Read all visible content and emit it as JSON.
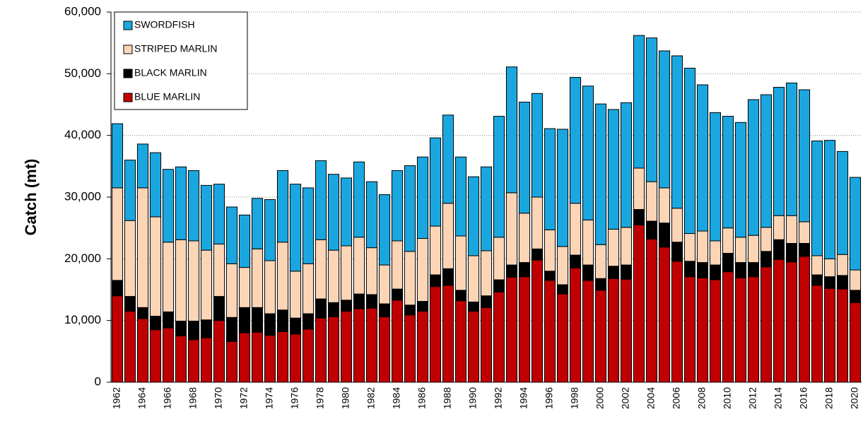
{
  "chart_data": {
    "type": "stacked-bar",
    "y_label": "Catch (mt)",
    "categories": [
      "1962",
      null,
      "1964",
      null,
      "1966",
      null,
      "1968",
      null,
      "1970",
      null,
      "1972",
      null,
      "1974",
      null,
      "1976",
      null,
      "1978",
      null,
      "1980",
      null,
      "1982",
      null,
      "1984",
      null,
      "1986",
      null,
      "1988",
      null,
      "1990",
      null,
      "1992",
      null,
      "1994",
      null,
      "1996",
      null,
      "1998",
      null,
      "2000",
      null,
      "2002",
      null,
      "2004",
      null,
      "2006",
      null,
      "2008",
      null,
      "2010",
      null,
      "2012",
      null,
      "2014",
      null,
      "2016",
      null,
      "2018",
      null,
      "2020"
    ],
    "series": [
      {
        "name": "BLUE MARLIN",
        "color": "#c00000",
        "values": [
          14000,
          11500,
          10300,
          8500,
          8800,
          7500,
          6900,
          7200,
          10000,
          6600,
          8000,
          8100,
          7600,
          8200,
          7800,
          8600,
          10400,
          10600,
          11500,
          11900,
          12000,
          10600,
          13300,
          10900,
          11500,
          15500,
          15700,
          13200,
          11500,
          12100,
          14600,
          17000,
          17100,
          19800,
          16500,
          14300,
          18500,
          16500,
          14900,
          16800,
          16700,
          25500,
          23200,
          21900,
          19600,
          17100,
          16900,
          16600,
          17900,
          16900,
          17100,
          18700,
          19900,
          19500,
          20400,
          15700,
          15200,
          15100,
          12900
        ]
      },
      {
        "name": "BLACK MARLIN",
        "color": "#000000",
        "values": [
          2500,
          2400,
          1800,
          2200,
          2600,
          2400,
          3000,
          2900,
          3900,
          3900,
          4100,
          4000,
          3500,
          3500,
          2600,
          2500,
          3100,
          2300,
          1800,
          2400,
          2200,
          2100,
          1800,
          1600,
          1600,
          1900,
          2700,
          1700,
          1500,
          1900,
          2000,
          2000,
          2300,
          1800,
          1500,
          1500,
          2100,
          2500,
          1900,
          2000,
          2300,
          2500,
          2900,
          3900,
          3100,
          2500,
          2500,
          2400,
          3000,
          2500,
          2300,
          2500,
          3200,
          3000,
          2100,
          1700,
          1900,
          2200,
          2000
        ]
      },
      {
        "name": "STRIPED MARLIN",
        "color": "#fbd5b5",
        "values": [
          15000,
          12300,
          19400,
          16100,
          11300,
          13200,
          13000,
          11300,
          8500,
          8700,
          6500,
          9500,
          8600,
          11000,
          7600,
          8100,
          9600,
          8500,
          8800,
          9200,
          7600,
          6300,
          7800,
          8700,
          10200,
          7900,
          10600,
          8800,
          7500,
          7300,
          6900,
          11700,
          8000,
          8400,
          6700,
          6200,
          8400,
          7300,
          5500,
          6000,
          6100,
          6700,
          6400,
          5700,
          5500,
          4500,
          5100,
          3900,
          4100,
          4100,
          4400,
          3900,
          3900,
          4500,
          3500,
          3100,
          2900,
          3400,
          3300
        ]
      },
      {
        "name": "SWORDFISH",
        "color": "#1aa7e0",
        "values": [
          10400,
          9800,
          7100,
          10400,
          11800,
          11800,
          11400,
          10500,
          9700,
          9200,
          8500,
          8200,
          9900,
          11600,
          14100,
          12300,
          12800,
          12300,
          11000,
          12200,
          10700,
          11400,
          11400,
          13900,
          13200,
          14300,
          14300,
          12800,
          12800,
          13600,
          19600,
          20400,
          18000,
          16800,
          16400,
          19000,
          20400,
          21700,
          22800,
          19400,
          20200,
          21500,
          23300,
          22200,
          24700,
          26800,
          23700,
          20800,
          18100,
          18600,
          22000,
          21500,
          20800,
          21500,
          21400,
          18600,
          19200,
          16700,
          15000
        ]
      }
    ],
    "ylim": [
      0,
      60000
    ],
    "yticks": [
      0,
      {
        "value": 10000,
        "label": "10,000"
      },
      {
        "value": 20000,
        "label": "20,000"
      },
      {
        "value": 30000,
        "label": "30,000"
      },
      {
        "value": 40000,
        "label": "40,000"
      },
      {
        "value": 50000,
        "label": "50,000"
      },
      {
        "value": 60000,
        "label": "60,000"
      }
    ],
    "grid": true,
    "legend": "upper-left"
  }
}
